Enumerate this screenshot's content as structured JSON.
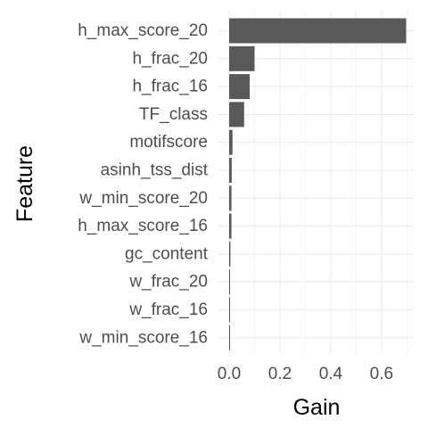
{
  "chart_data": {
    "type": "bar",
    "orientation": "horizontal",
    "xlabel": "Gain",
    "ylabel": "Feature",
    "xlim": [
      0,
      0.72
    ],
    "xticks": [
      0.0,
      0.2,
      0.4,
      0.6
    ],
    "xtick_labels": [
      "0.0",
      "0.2",
      "0.4",
      "0.6"
    ],
    "grid": true,
    "bar_color": "#595959",
    "grid_color": "#ebebeb",
    "categories": [
      "h_max_score_20",
      "h_frac_20",
      "h_frac_16",
      "TF_class",
      "motifscore",
      "asinh_tss_dist",
      "w_min_score_20",
      "h_max_score_16",
      "gc_content",
      "w_frac_20",
      "w_frac_16",
      "w_min_score_16"
    ],
    "values": [
      0.697,
      0.1,
      0.081,
      0.059,
      0.013,
      0.01,
      0.009,
      0.009,
      0.005,
      0.003,
      0.002,
      0.002
    ]
  }
}
